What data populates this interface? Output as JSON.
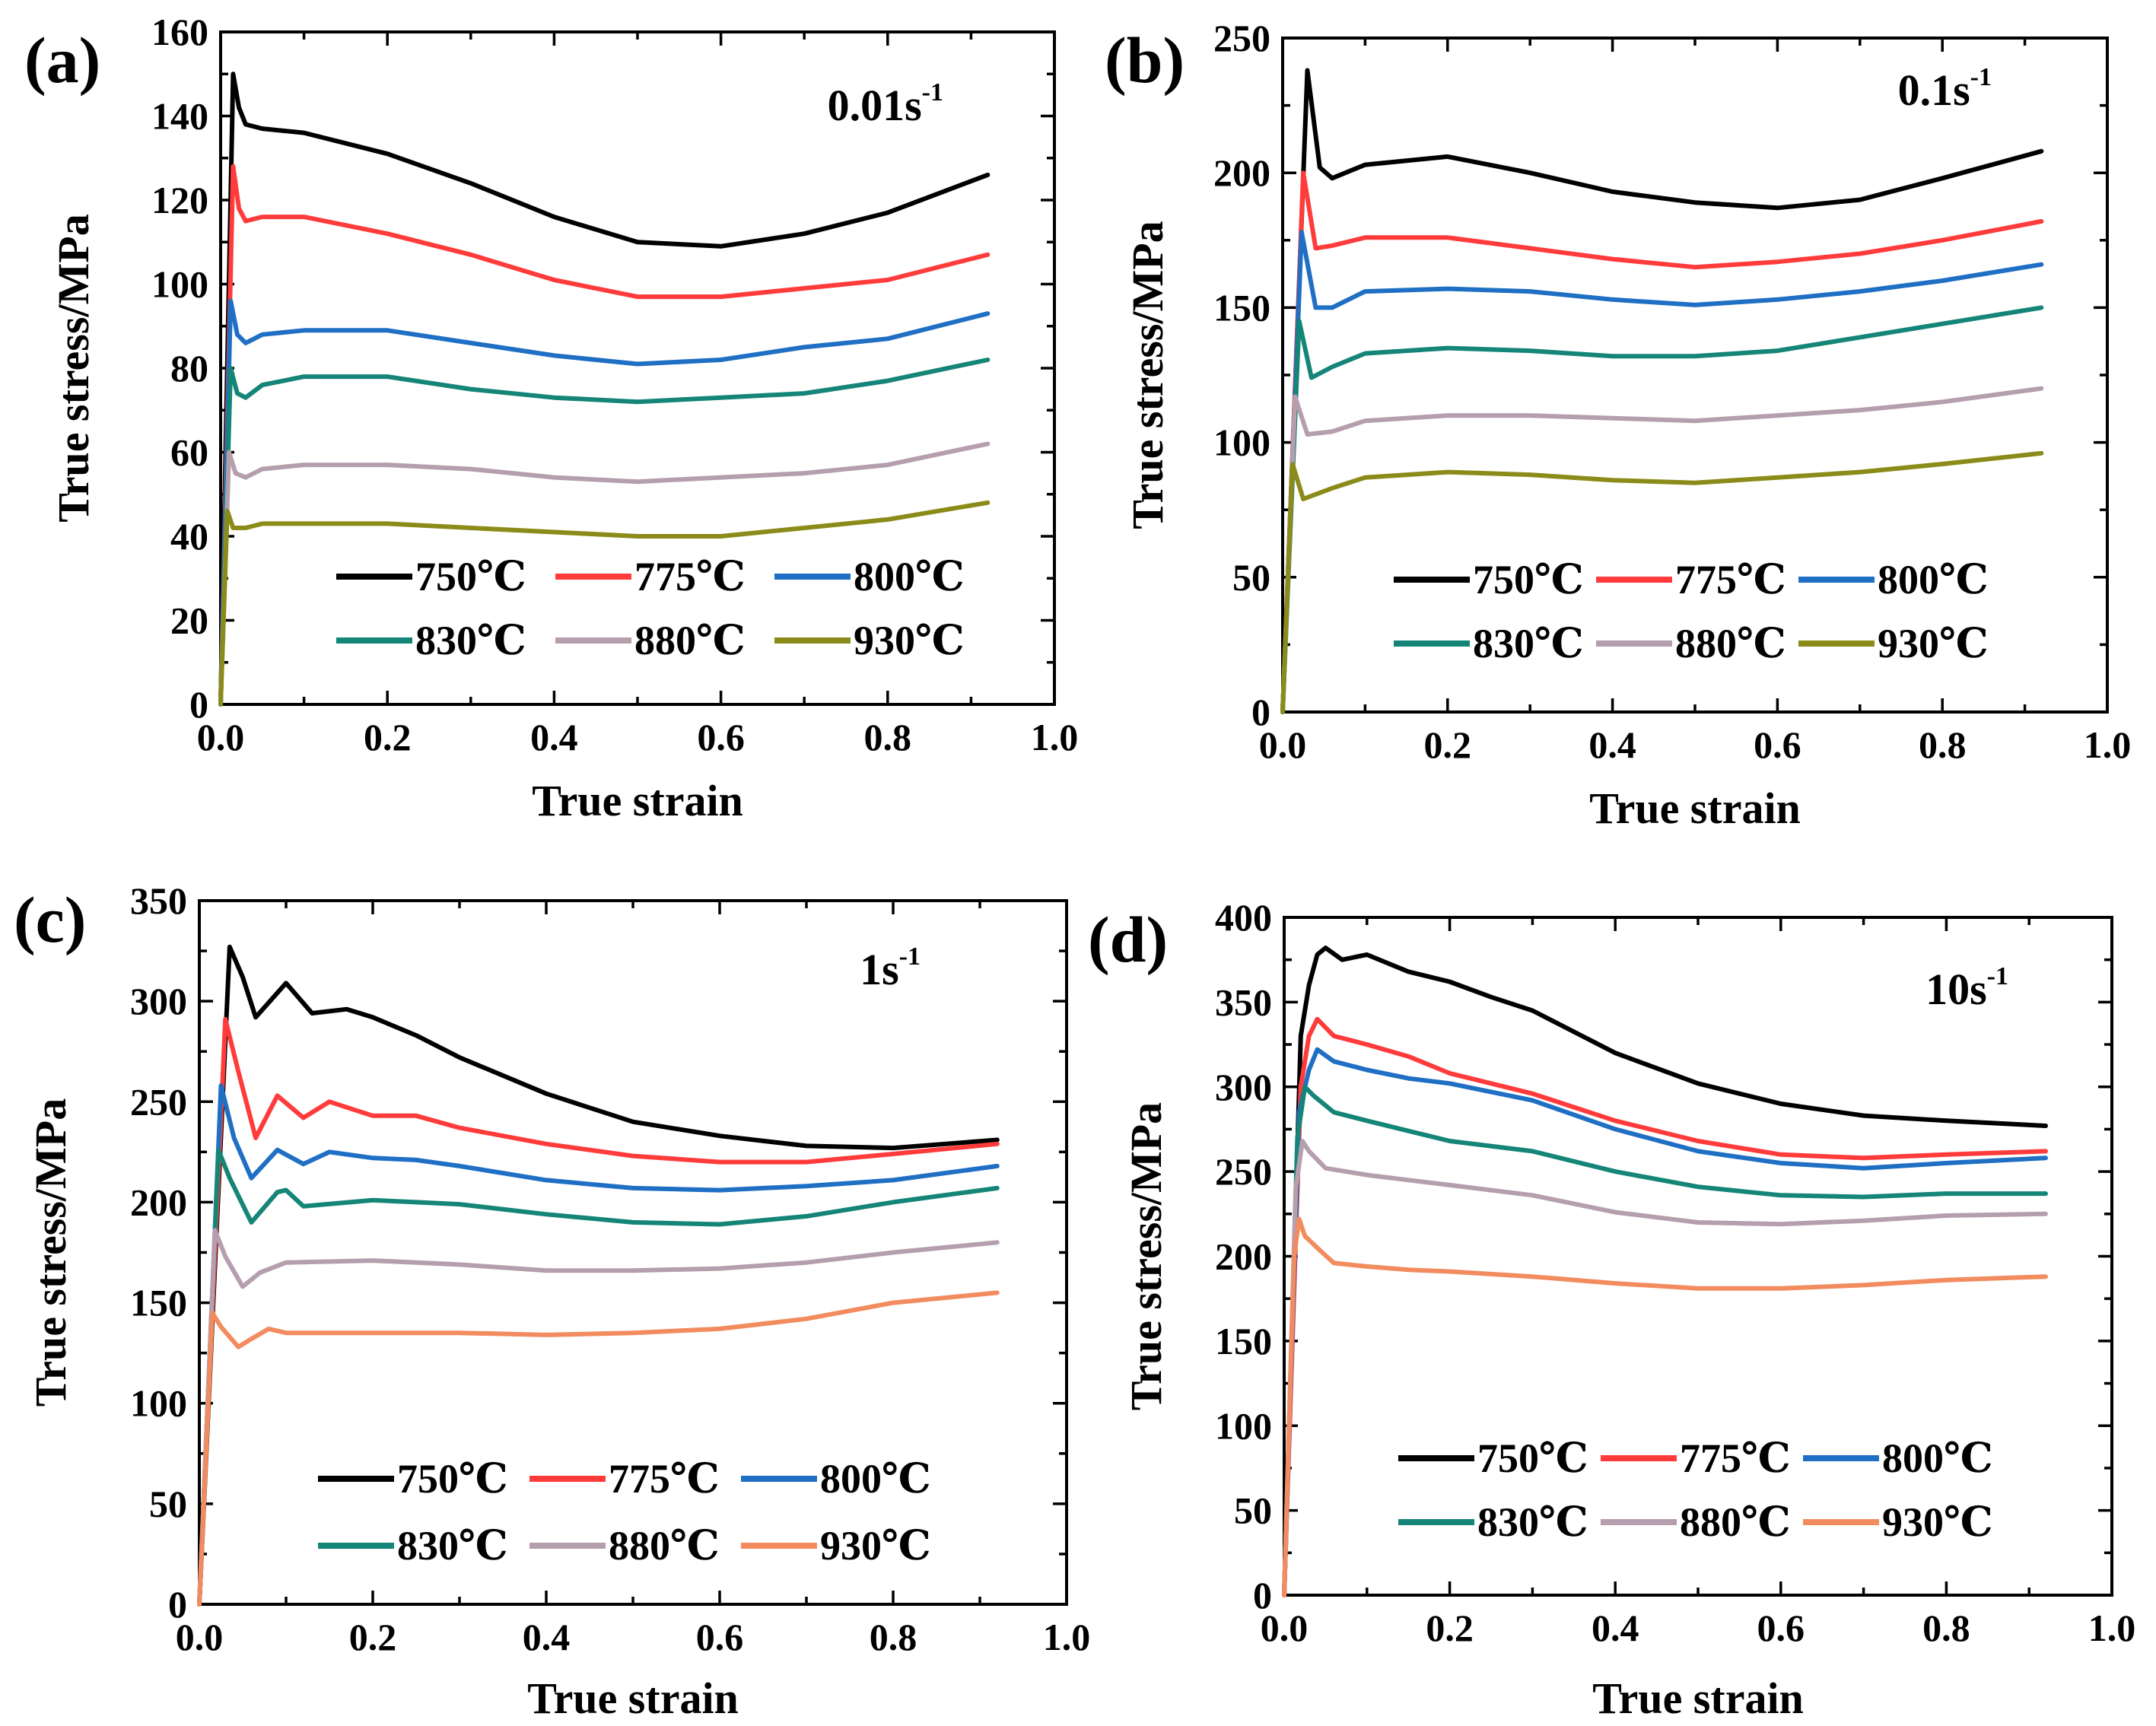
{
  "figure": {
    "x_axis_label": "True strain",
    "y_axis_label": "True stress/MPa",
    "legend_labels": [
      "750℃",
      "775℃",
      "800℃",
      "830℃",
      "880℃",
      "930℃"
    ]
  },
  "chart_data": [
    {
      "type": "line",
      "panel": "(a)",
      "rate_base": "0.01s",
      "rate_exp": "-1",
      "xlabel": "True strain",
      "ylabel": "True stress/MPa",
      "xlim": [
        0,
        1.0
      ],
      "ylim": [
        0,
        160
      ],
      "xticks": [
        0.0,
        0.2,
        0.4,
        0.6,
        0.8,
        1.0
      ],
      "yticks": [
        0,
        20,
        40,
        60,
        80,
        100,
        120,
        140,
        160
      ],
      "legend": "bottom-right",
      "series": [
        {
          "name": "750℃",
          "color": "#000000",
          "x": [
            0,
            0.015,
            0.022,
            0.03,
            0.05,
            0.1,
            0.2,
            0.3,
            0.4,
            0.5,
            0.6,
            0.7,
            0.8,
            0.92
          ],
          "y": [
            0,
            150,
            142,
            138,
            137,
            136,
            131,
            124,
            116,
            110,
            109,
            112,
            117,
            126
          ]
        },
        {
          "name": "775℃",
          "color": "#ff3b3b",
          "x": [
            0,
            0.015,
            0.022,
            0.03,
            0.05,
            0.1,
            0.2,
            0.3,
            0.4,
            0.5,
            0.6,
            0.7,
            0.8,
            0.92
          ],
          "y": [
            0,
            128,
            118,
            115,
            116,
            116,
            112,
            107,
            101,
            97,
            97,
            99,
            101,
            107
          ]
        },
        {
          "name": "800℃",
          "color": "#1f6fc4",
          "x": [
            0,
            0.012,
            0.02,
            0.03,
            0.05,
            0.1,
            0.2,
            0.3,
            0.4,
            0.5,
            0.6,
            0.7,
            0.8,
            0.92
          ],
          "y": [
            0,
            96,
            88,
            86,
            88,
            89,
            89,
            86,
            83,
            81,
            82,
            85,
            87,
            93
          ]
        },
        {
          "name": "830℃",
          "color": "#158577",
          "x": [
            0,
            0.012,
            0.02,
            0.03,
            0.05,
            0.1,
            0.2,
            0.3,
            0.4,
            0.5,
            0.6,
            0.7,
            0.8,
            0.92
          ],
          "y": [
            0,
            80,
            74,
            73,
            76,
            78,
            78,
            75,
            73,
            72,
            73,
            74,
            77,
            82
          ]
        },
        {
          "name": "880℃",
          "color": "#b59eae",
          "x": [
            0,
            0.01,
            0.018,
            0.03,
            0.05,
            0.1,
            0.2,
            0.3,
            0.4,
            0.5,
            0.6,
            0.7,
            0.8,
            0.92
          ],
          "y": [
            0,
            60,
            55,
            54,
            56,
            57,
            57,
            56,
            54,
            53,
            54,
            55,
            57,
            62
          ]
        },
        {
          "name": "930℃",
          "color": "#8b8b1a",
          "x": [
            0,
            0.008,
            0.015,
            0.03,
            0.05,
            0.1,
            0.2,
            0.3,
            0.4,
            0.5,
            0.6,
            0.7,
            0.8,
            0.92
          ],
          "y": [
            0,
            46,
            42,
            42,
            43,
            43,
            43,
            42,
            41,
            40,
            40,
            42,
            44,
            48
          ]
        }
      ]
    },
    {
      "type": "line",
      "panel": "(b)",
      "rate_base": "0.1s",
      "rate_exp": "-1",
      "xlabel": "True strain",
      "ylabel": "True stress/MPa",
      "xlim": [
        0,
        1.0
      ],
      "ylim": [
        0,
        250
      ],
      "xticks": [
        0.0,
        0.2,
        0.4,
        0.6,
        0.8,
        1.0
      ],
      "yticks": [
        0,
        50,
        100,
        150,
        200,
        250
      ],
      "legend": "bottom-right",
      "series": [
        {
          "name": "750℃",
          "color": "#000000",
          "x": [
            0,
            0.03,
            0.045,
            0.06,
            0.1,
            0.2,
            0.3,
            0.4,
            0.5,
            0.6,
            0.7,
            0.8,
            0.92
          ],
          "y": [
            0,
            238,
            202,
            198,
            203,
            206,
            200,
            193,
            189,
            187,
            190,
            198,
            208
          ]
        },
        {
          "name": "775℃",
          "color": "#ff3b3b",
          "x": [
            0,
            0.025,
            0.04,
            0.06,
            0.1,
            0.2,
            0.3,
            0.4,
            0.5,
            0.6,
            0.7,
            0.8,
            0.92
          ],
          "y": [
            0,
            200,
            172,
            173,
            176,
            176,
            172,
            168,
            165,
            167,
            170,
            175,
            182
          ]
        },
        {
          "name": "800℃",
          "color": "#1f6fc4",
          "x": [
            0,
            0.023,
            0.04,
            0.06,
            0.1,
            0.2,
            0.3,
            0.4,
            0.5,
            0.6,
            0.7,
            0.8,
            0.92
          ],
          "y": [
            0,
            178,
            150,
            150,
            156,
            157,
            156,
            153,
            151,
            153,
            156,
            160,
            166
          ]
        },
        {
          "name": "830℃",
          "color": "#158577",
          "x": [
            0,
            0.02,
            0.035,
            0.06,
            0.1,
            0.2,
            0.3,
            0.4,
            0.5,
            0.6,
            0.7,
            0.8,
            0.92
          ],
          "y": [
            0,
            145,
            124,
            128,
            133,
            135,
            134,
            132,
            132,
            134,
            139,
            144,
            150
          ]
        },
        {
          "name": "880℃",
          "color": "#b59eae",
          "x": [
            0,
            0.015,
            0.03,
            0.06,
            0.1,
            0.2,
            0.3,
            0.4,
            0.5,
            0.6,
            0.7,
            0.8,
            0.92
          ],
          "y": [
            0,
            117,
            103,
            104,
            108,
            110,
            110,
            109,
            108,
            110,
            112,
            115,
            120
          ]
        },
        {
          "name": "930℃",
          "color": "#8b8b1a",
          "x": [
            0,
            0.012,
            0.025,
            0.06,
            0.1,
            0.2,
            0.3,
            0.4,
            0.5,
            0.6,
            0.7,
            0.8,
            0.92
          ],
          "y": [
            0,
            92,
            79,
            83,
            87,
            89,
            88,
            86,
            85,
            87,
            89,
            92,
            96
          ]
        }
      ]
    },
    {
      "type": "line",
      "panel": "(c)",
      "rate_base": "1s",
      "rate_exp": "-1",
      "xlabel": "True strain",
      "ylabel": "True stress/MPa",
      "xlim": [
        0,
        1.0
      ],
      "ylim": [
        0,
        350
      ],
      "xticks": [
        0.0,
        0.2,
        0.4,
        0.6,
        0.8,
        1.0
      ],
      "yticks": [
        0,
        50,
        100,
        150,
        200,
        250,
        300,
        350
      ],
      "legend": "bottom-right",
      "series": [
        {
          "name": "750℃",
          "color": "#000000",
          "x": [
            0,
            0.035,
            0.05,
            0.065,
            0.1,
            0.13,
            0.17,
            0.2,
            0.25,
            0.3,
            0.4,
            0.5,
            0.6,
            0.7,
            0.8,
            0.92
          ],
          "y": [
            0,
            327,
            312,
            292,
            309,
            294,
            296,
            292,
            283,
            272,
            254,
            240,
            233,
            228,
            227,
            231
          ]
        },
        {
          "name": "775℃",
          "color": "#ff3b3b",
          "x": [
            0,
            0.03,
            0.045,
            0.065,
            0.09,
            0.12,
            0.15,
            0.2,
            0.25,
            0.3,
            0.4,
            0.5,
            0.6,
            0.7,
            0.8,
            0.92
          ],
          "y": [
            0,
            291,
            265,
            232,
            253,
            242,
            250,
            243,
            243,
            237,
            229,
            223,
            220,
            220,
            224,
            229
          ]
        },
        {
          "name": "800℃",
          "color": "#1f6fc4",
          "x": [
            0,
            0.025,
            0.04,
            0.06,
            0.09,
            0.12,
            0.15,
            0.2,
            0.25,
            0.3,
            0.4,
            0.5,
            0.6,
            0.7,
            0.8,
            0.92
          ],
          "y": [
            0,
            258,
            232,
            212,
            226,
            219,
            225,
            222,
            221,
            218,
            211,
            207,
            206,
            208,
            211,
            218
          ]
        },
        {
          "name": "830℃",
          "color": "#158577",
          "x": [
            0,
            0.022,
            0.035,
            0.06,
            0.09,
            0.1,
            0.12,
            0.2,
            0.25,
            0.3,
            0.4,
            0.5,
            0.6,
            0.7,
            0.8,
            0.92
          ],
          "y": [
            0,
            226,
            212,
            190,
            205,
            206,
            198,
            201,
            200,
            199,
            194,
            190,
            189,
            193,
            200,
            207
          ]
        },
        {
          "name": "880℃",
          "color": "#b59eae",
          "x": [
            0,
            0.018,
            0.03,
            0.05,
            0.07,
            0.1,
            0.2,
            0.3,
            0.4,
            0.5,
            0.6,
            0.7,
            0.8,
            0.92
          ],
          "y": [
            0,
            186,
            173,
            158,
            165,
            170,
            171,
            169,
            166,
            166,
            167,
            170,
            175,
            180
          ]
        },
        {
          "name": "930℃",
          "color": "#f28c5f",
          "x": [
            0,
            0.015,
            0.025,
            0.045,
            0.06,
            0.08,
            0.1,
            0.2,
            0.3,
            0.4,
            0.5,
            0.6,
            0.7,
            0.8,
            0.92
          ],
          "y": [
            0,
            145,
            138,
            128,
            132,
            137,
            135,
            135,
            135,
            134,
            135,
            137,
            142,
            150,
            155
          ]
        }
      ]
    },
    {
      "type": "line",
      "panel": "(d)",
      "rate_base": "10s",
      "rate_exp": "-1",
      "xlabel": "True strain",
      "ylabel": "True stress/MPa",
      "xlim": [
        0,
        1.0
      ],
      "ylim": [
        0,
        400
      ],
      "xticks": [
        0.0,
        0.2,
        0.4,
        0.6,
        0.8,
        1.0
      ],
      "yticks": [
        0,
        50,
        100,
        150,
        200,
        250,
        300,
        350,
        400
      ],
      "legend": "bottom-right",
      "series": [
        {
          "name": "750℃",
          "color": "#000000",
          "x": [
            0,
            0.02,
            0.03,
            0.04,
            0.05,
            0.07,
            0.1,
            0.15,
            0.2,
            0.25,
            0.3,
            0.4,
            0.5,
            0.6,
            0.7,
            0.8,
            0.92
          ],
          "y": [
            0,
            330,
            360,
            378,
            382,
            375,
            378,
            368,
            362,
            353,
            345,
            320,
            302,
            290,
            283,
            280,
            277
          ]
        },
        {
          "name": "775℃",
          "color": "#ff3b3b",
          "x": [
            0,
            0.02,
            0.03,
            0.04,
            0.06,
            0.1,
            0.15,
            0.2,
            0.3,
            0.4,
            0.5,
            0.6,
            0.7,
            0.8,
            0.92
          ],
          "y": [
            0,
            300,
            330,
            340,
            330,
            325,
            318,
            308,
            296,
            280,
            268,
            260,
            258,
            260,
            262
          ]
        },
        {
          "name": "800℃",
          "color": "#1f6fc4",
          "x": [
            0,
            0.018,
            0.03,
            0.04,
            0.06,
            0.1,
            0.15,
            0.2,
            0.3,
            0.4,
            0.5,
            0.6,
            0.7,
            0.8,
            0.92
          ],
          "y": [
            0,
            285,
            310,
            322,
            315,
            310,
            305,
            302,
            292,
            275,
            262,
            255,
            252,
            255,
            258
          ]
        },
        {
          "name": "830℃",
          "color": "#158577",
          "x": [
            0,
            0.016,
            0.025,
            0.035,
            0.06,
            0.1,
            0.15,
            0.2,
            0.3,
            0.4,
            0.5,
            0.6,
            0.7,
            0.8,
            0.92
          ],
          "y": [
            0,
            270,
            300,
            295,
            285,
            280,
            274,
            268,
            262,
            250,
            241,
            236,
            235,
            237,
            237
          ]
        },
        {
          "name": "880℃",
          "color": "#b59eae",
          "x": [
            0,
            0.014,
            0.022,
            0.03,
            0.05,
            0.1,
            0.15,
            0.2,
            0.3,
            0.4,
            0.5,
            0.6,
            0.7,
            0.8,
            0.92
          ],
          "y": [
            0,
            240,
            268,
            262,
            252,
            248,
            245,
            242,
            236,
            226,
            220,
            219,
            221,
            224,
            225
          ]
        },
        {
          "name": "930℃",
          "color": "#f28c5f",
          "x": [
            0,
            0.012,
            0.018,
            0.025,
            0.04,
            0.06,
            0.1,
            0.15,
            0.2,
            0.3,
            0.4,
            0.5,
            0.6,
            0.7,
            0.8,
            0.92
          ],
          "y": [
            0,
            200,
            222,
            212,
            205,
            196,
            194,
            192,
            191,
            188,
            184,
            181,
            181,
            183,
            186,
            188
          ]
        }
      ]
    }
  ]
}
